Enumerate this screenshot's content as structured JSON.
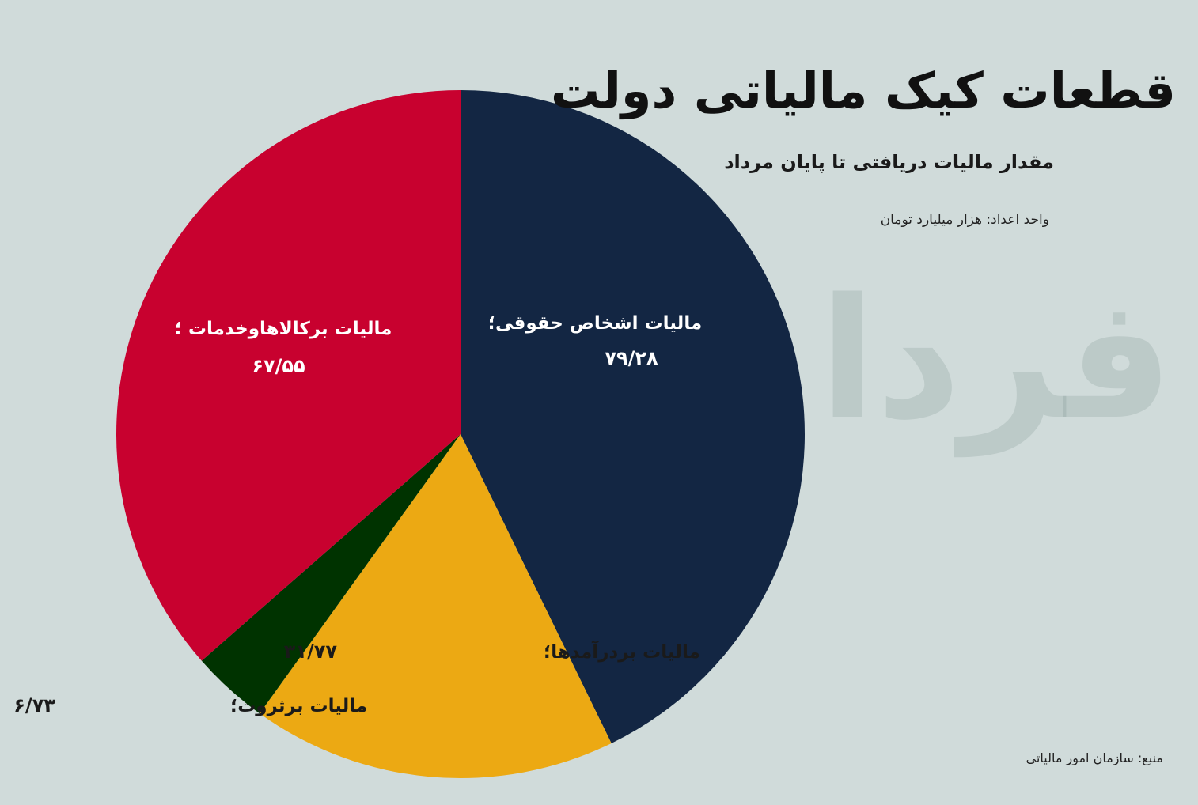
{
  "title": "قطعات کیک مالیاتی دولت",
  "subtitle": "مقدار مالیات دریافتی تا پایان مرداد",
  "unit_note": "واحد اعداد: هزار میلیارد تومان",
  "source": "منبع: سازمان امور مالیاتی",
  "watermark": "فردا",
  "chart_data": {
    "type": "pie",
    "title": "قطعات کیک مالیاتی دولت",
    "subtitle": "مقدار مالیات دریافتی تا پایان مرداد",
    "unit": "هزار میلیارد تومان",
    "start_angle": "12 o'clock",
    "direction": "clockwise",
    "slices": [
      {
        "label": "مالیات اشخاص حقوقی؛",
        "value_text": "۷۹/۲۸",
        "value": 79.28,
        "color": "#132643",
        "text_color": "#ffffff"
      },
      {
        "label": "مالیات بردرآمدها؛",
        "value_text": "۳۱/۷۷",
        "value": 31.77,
        "color": "#eca913",
        "text_color": "#1a1a1a"
      },
      {
        "label": "مالیات برثروت؛",
        "value_text": "۶/۷۳",
        "value": 6.73,
        "color": "#003300",
        "text_color": "#1a1a1a"
      },
      {
        "label": "مالیات برکالاهاوخدمات ؛",
        "value_text": "۶۷/۵۵",
        "value": 67.55,
        "color": "#c8012f",
        "text_color": "#ffffff"
      }
    ]
  }
}
